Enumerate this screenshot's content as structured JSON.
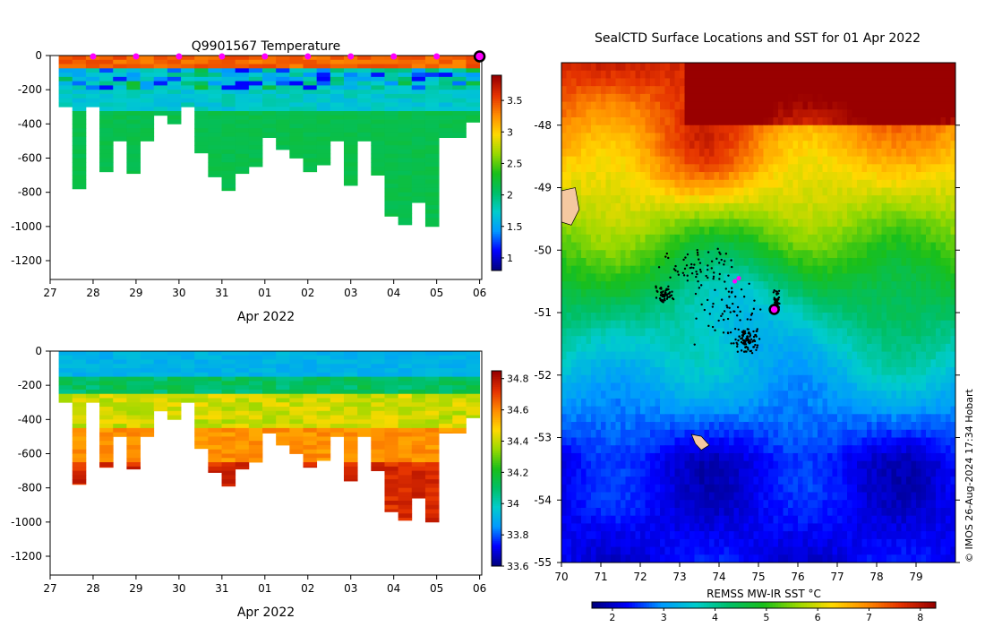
{
  "chart_data": [
    {
      "type": "heatmap",
      "title": "Q9901567  Temperature",
      "xlabel": "Apr 2022",
      "ylabel": "",
      "x_ticks": [
        "27",
        "28",
        "29",
        "30",
        "31",
        "01",
        "02",
        "03",
        "04",
        "05",
        "06"
      ],
      "y_ticks": [
        0,
        -200,
        -400,
        -600,
        -800,
        -1000,
        -1200
      ],
      "xlim": [
        27,
        37.05
      ],
      "ylim": [
        -1310,
        0
      ],
      "colorbar": {
        "ticks": [
          1,
          1.5,
          2,
          2.5,
          3,
          3.5
        ],
        "range": [
          0.8,
          3.9
        ]
      },
      "profile_markers_x": [
        28,
        29,
        30,
        31,
        32,
        33,
        34,
        35,
        36
      ],
      "latest_marker_x": 37
    },
    {
      "type": "heatmap",
      "title": "",
      "xlabel": "Apr 2022",
      "ylabel": "",
      "x_ticks": [
        "27",
        "28",
        "29",
        "30",
        "31",
        "01",
        "02",
        "03",
        "04",
        "05",
        "06"
      ],
      "y_ticks": [
        0,
        -200,
        -400,
        -600,
        -800,
        -1000,
        -1200
      ],
      "xlim": [
        27,
        37.05
      ],
      "ylim": [
        -1310,
        0
      ],
      "colorbar": {
        "ticks": [
          33.6,
          33.8,
          34,
          34.2,
          34.4,
          34.6,
          34.8
        ],
        "range": [
          33.6,
          34.85
        ]
      }
    },
    {
      "type": "heatmap",
      "title": "SealCTD Surface Locations and SST for 01 Apr 2022",
      "xlabel": "",
      "ylabel": "",
      "x_ticks": [
        "70",
        "71",
        "72",
        "73",
        "74",
        "75",
        "76",
        "77",
        "78",
        "79"
      ],
      "y_ticks": [
        "-48",
        "-49",
        "-50",
        "-51",
        "-52",
        "-53",
        "-54",
        "-55"
      ],
      "xlim": [
        70,
        80
      ],
      "ylim": [
        -55,
        -47
      ],
      "colorbar": {
        "label": "REMSS MW-IR SST °C",
        "ticks": [
          2,
          3,
          4,
          5,
          6,
          7,
          8
        ],
        "range": [
          1.6,
          8.3
        ]
      },
      "current_position": {
        "lon": 75.4,
        "lat": -50.95
      },
      "recent_positions": [
        {
          "lon": 74.4,
          "lat": -50.5
        },
        {
          "lon": 74.5,
          "lat": -50.45
        }
      ],
      "copyright": "© IMOS 26-Aug-2024 17:34 Hobart"
    }
  ]
}
